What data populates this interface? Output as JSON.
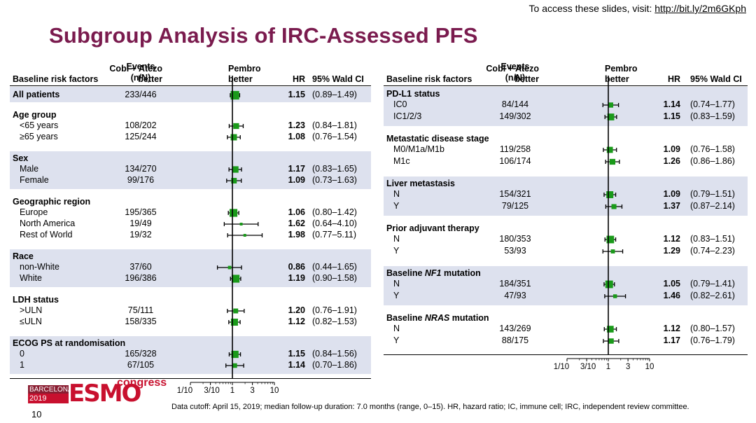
{
  "header": {
    "access_text": "To access these slides, visit: ",
    "access_link": "http://bit.ly/2m6GKph",
    "title": "Subgroup Analysis of IRC-Assessed PFS"
  },
  "columns": {
    "risk_factors": "Baseline risk factors",
    "events_line1": "Events",
    "events_line2": "(n/N)",
    "cobi_line1": "Cobi + Atezo",
    "cobi_line2": "better",
    "pembro_line1": "Pembro",
    "pembro_line2": "better",
    "hr": "HR",
    "ci": "95% Wald CI"
  },
  "colors": {
    "title": "#7a1b4e",
    "band": "#dde1ee",
    "marker": "#1a9a1a"
  },
  "axis": {
    "ticks": [
      0.1,
      0.3,
      1,
      3,
      10
    ],
    "tick_labels": [
      "1/10",
      "3/10",
      "1",
      "3",
      "10"
    ],
    "range": [
      0.1,
      10
    ]
  },
  "chart_data": [
    {
      "type": "forest",
      "title": "Subgroup Analysis of IRC-Assessed PFS (left panel)",
      "xscale": "log",
      "xlim": [
        0.1,
        10
      ],
      "groups": [
        {
          "label": "All patients",
          "rows": [
            {
              "label": "",
              "events": "233/446",
              "hr": 1.15,
              "ci_low": 0.89,
              "ci_high": 1.49,
              "hr_text": "1.15",
              "ci_text": "(0.89–1.49)"
            }
          ]
        },
        {
          "label": "Age group",
          "rows": [
            {
              "label": "<65 years",
              "events": "108/202",
              "hr": 1.23,
              "ci_low": 0.84,
              "ci_high": 1.81,
              "hr_text": "1.23",
              "ci_text": "(0.84–1.81)"
            },
            {
              "label": "≥65 years",
              "events": "125/244",
              "hr": 1.08,
              "ci_low": 0.76,
              "ci_high": 1.54,
              "hr_text": "1.08",
              "ci_text": "(0.76–1.54)"
            }
          ]
        },
        {
          "label": "Sex",
          "rows": [
            {
              "label": "Male",
              "events": "134/270",
              "hr": 1.17,
              "ci_low": 0.83,
              "ci_high": 1.65,
              "hr_text": "1.17",
              "ci_text": "(0.83–1.65)"
            },
            {
              "label": "Female",
              "events": "99/176",
              "hr": 1.09,
              "ci_low": 0.73,
              "ci_high": 1.63,
              "hr_text": "1.09",
              "ci_text": "(0.73–1.63)"
            }
          ]
        },
        {
          "label": "Geographic region",
          "rows": [
            {
              "label": "Europe",
              "events": "195/365",
              "hr": 1.06,
              "ci_low": 0.8,
              "ci_high": 1.42,
              "hr_text": "1.06",
              "ci_text": "(0.80–1.42)"
            },
            {
              "label": "North America",
              "events": "19/49",
              "hr": 1.62,
              "ci_low": 0.64,
              "ci_high": 4.1,
              "hr_text": "1.62",
              "ci_text": "(0.64–4.10)"
            },
            {
              "label": "Rest of World",
              "events": "19/32",
              "hr": 1.98,
              "ci_low": 0.77,
              "ci_high": 5.11,
              "hr_text": "1.98",
              "ci_text": "(0.77–5.11)"
            }
          ]
        },
        {
          "label": "Race",
          "rows": [
            {
              "label": "non-White",
              "events": "37/60",
              "hr": 0.86,
              "ci_low": 0.44,
              "ci_high": 1.65,
              "hr_text": "0.86",
              "ci_text": "(0.44–1.65)"
            },
            {
              "label": "White",
              "events": "196/386",
              "hr": 1.19,
              "ci_low": 0.9,
              "ci_high": 1.58,
              "hr_text": "1.19",
              "ci_text": "(0.90–1.58)"
            }
          ]
        },
        {
          "label": "LDH status",
          "rows": [
            {
              "label": ">ULN",
              "events": "75/111",
              "hr": 1.2,
              "ci_low": 0.76,
              "ci_high": 1.91,
              "hr_text": "1.20",
              "ci_text": "(0.76–1.91)"
            },
            {
              "label": "≤ULN",
              "events": "158/335",
              "hr": 1.12,
              "ci_low": 0.82,
              "ci_high": 1.53,
              "hr_text": "1.12",
              "ci_text": "(0.82–1.53)"
            }
          ]
        },
        {
          "label": "ECOG PS at randomisation",
          "rows": [
            {
              "label": "0",
              "events": "165/328",
              "hr": 1.15,
              "ci_low": 0.84,
              "ci_high": 1.56,
              "hr_text": "1.15",
              "ci_text": "(0.84–1.56)"
            },
            {
              "label": "1",
              "events": "67/105",
              "hr": 1.14,
              "ci_low": 0.7,
              "ci_high": 1.86,
              "hr_text": "1.14",
              "ci_text": "(0.70–1.86)"
            }
          ]
        }
      ]
    },
    {
      "type": "forest",
      "title": "Subgroup Analysis of IRC-Assessed PFS (right panel)",
      "xscale": "log",
      "xlim": [
        0.1,
        10
      ],
      "groups": [
        {
          "label": "PD-L1 status",
          "rows": [
            {
              "label": "IC0",
              "events": "84/144",
              "hr": 1.14,
              "ci_low": 0.74,
              "ci_high": 1.77,
              "hr_text": "1.14",
              "ci_text": "(0.74–1.77)"
            },
            {
              "label": "IC1/2/3",
              "events": "149/302",
              "hr": 1.15,
              "ci_low": 0.83,
              "ci_high": 1.59,
              "hr_text": "1.15",
              "ci_text": "(0.83–1.59)"
            }
          ]
        },
        {
          "label": "Metastatic disease stage",
          "rows": [
            {
              "label": "M0/M1a/M1b",
              "events": "119/258",
              "hr": 1.09,
              "ci_low": 0.76,
              "ci_high": 1.58,
              "hr_text": "1.09",
              "ci_text": "(0.76–1.58)"
            },
            {
              "label": "M1c",
              "events": "106/174",
              "hr": 1.26,
              "ci_low": 0.86,
              "ci_high": 1.86,
              "hr_text": "1.26",
              "ci_text": "(0.86–1.86)"
            }
          ]
        },
        {
          "label": "Liver metastasis",
          "rows": [
            {
              "label": "N",
              "events": "154/321",
              "hr": 1.09,
              "ci_low": 0.79,
              "ci_high": 1.51,
              "hr_text": "1.09",
              "ci_text": "(0.79–1.51)"
            },
            {
              "label": "Y",
              "events": "79/125",
              "hr": 1.37,
              "ci_low": 0.87,
              "ci_high": 2.14,
              "hr_text": "1.37",
              "ci_text": "(0.87–2.14)"
            }
          ]
        },
        {
          "label": "Prior adjuvant therapy",
          "rows": [
            {
              "label": "N",
              "events": "180/353",
              "hr": 1.12,
              "ci_low": 0.83,
              "ci_high": 1.51,
              "hr_text": "1.12",
              "ci_text": "(0.83–1.51)"
            },
            {
              "label": "Y",
              "events": "53/93",
              "hr": 1.29,
              "ci_low": 0.74,
              "ci_high": 2.23,
              "hr_text": "1.29",
              "ci_text": "(0.74–2.23)"
            }
          ]
        },
        {
          "label_pre": "Baseline ",
          "label_em": "NF1",
          "label_post": " mutation",
          "label": "Baseline NF1 mutation",
          "rows": [
            {
              "label": "N",
              "events": "184/351",
              "hr": 1.05,
              "ci_low": 0.79,
              "ci_high": 1.41,
              "hr_text": "1.05",
              "ci_text": "(0.79–1.41)"
            },
            {
              "label": "Y",
              "events": "47/93",
              "hr": 1.46,
              "ci_low": 0.82,
              "ci_high": 2.61,
              "hr_text": "1.46",
              "ci_text": "(0.82–2.61)"
            }
          ]
        },
        {
          "label_pre": "Baseline ",
          "label_em": "NRAS",
          "label_post": " mutation",
          "label": "Baseline NRAS mutation",
          "rows": [
            {
              "label": "N",
              "events": "143/269",
              "hr": 1.12,
              "ci_low": 0.8,
              "ci_high": 1.57,
              "hr_text": "1.12",
              "ci_text": "(0.80–1.57)"
            },
            {
              "label": "Y",
              "events": "88/175",
              "hr": 1.17,
              "ci_low": 0.76,
              "ci_high": 1.79,
              "hr_text": "1.17",
              "ci_text": "(0.76–1.79)"
            }
          ]
        }
      ]
    }
  ],
  "footer": {
    "logo_city": "BARCELONA",
    "logo_year": "2019",
    "logo_brand": "ESMO",
    "logo_congress": "congress",
    "page_number": "10",
    "footnote": "Data cutoff: April 15, 2019; median follow-up duration: 7.0 months (range, 0–15). HR, hazard ratio; IC, immune cell; IRC, independent review committee."
  }
}
